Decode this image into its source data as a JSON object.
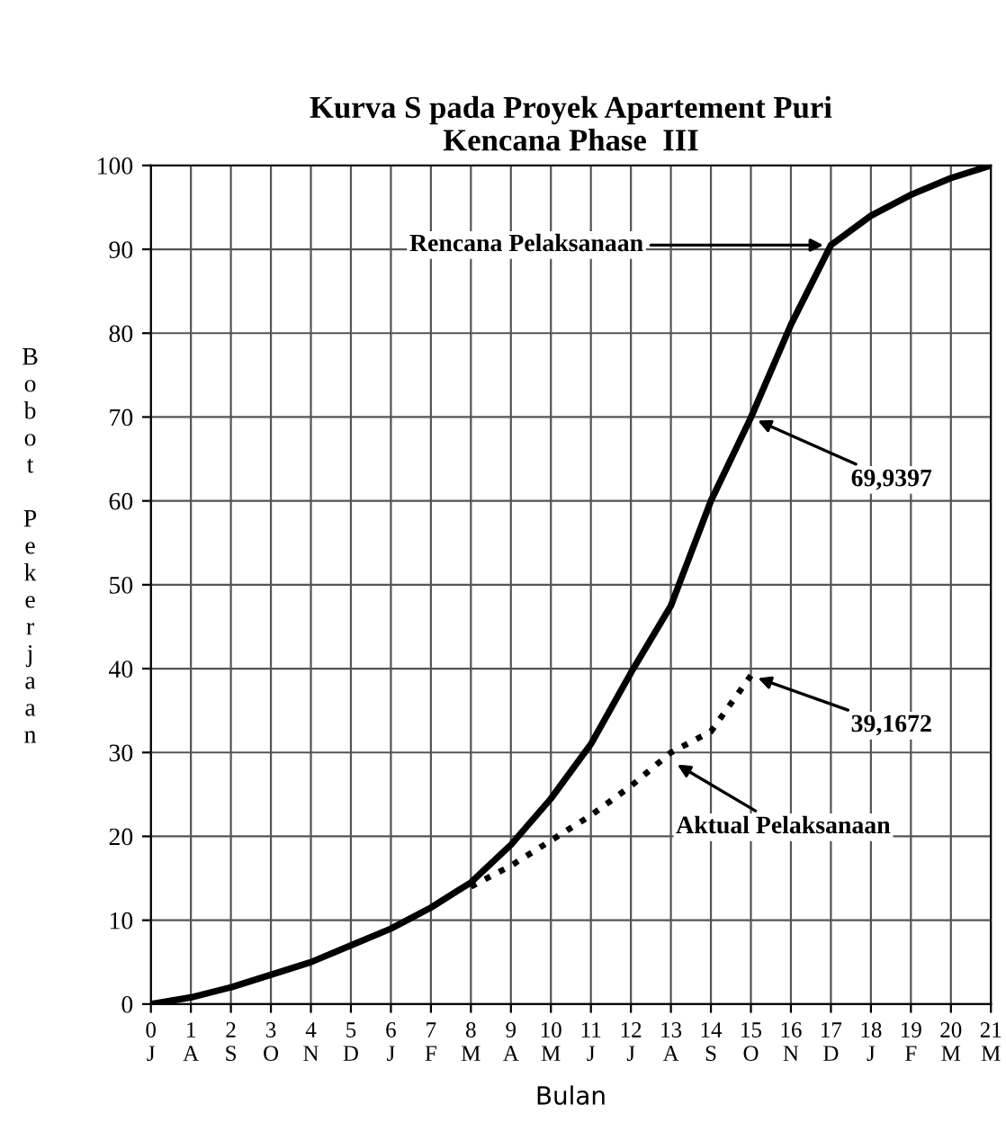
{
  "chart_data": {
    "type": "line",
    "title": "Kurva S pada Proyek Apartement Puri\nKencana Phase  III",
    "xlabel": "Bulan",
    "ylabel": "Bobot Pekerjaan",
    "series": [
      {
        "color": "#000000",
        "line_style": "solid",
        "x": [
          0,
          1,
          2,
          3,
          4,
          5,
          6,
          7,
          8,
          9,
          10,
          11,
          12,
          13,
          14,
          15,
          16,
          17,
          18,
          19,
          20,
          21
        ],
        "values": [
          0,
          0.8,
          2,
          3.5,
          5,
          7,
          9,
          11.5,
          14.5,
          19,
          24.5,
          31,
          39.5,
          47.5,
          60,
          69.9397,
          81,
          90.5,
          94,
          96.5,
          98.5,
          100
        ]
      },
      {
        "color": "#000000",
        "line_style": "dotted",
        "x": [
          8,
          9,
          10,
          11,
          12,
          13,
          14,
          15
        ],
        "values": [
          14,
          16.5,
          19.5,
          22.5,
          26,
          30,
          32.5,
          39.1672
        ]
      }
    ],
    "annotations": [
      {
        "text": "Rencana Pelaksanaan",
        "x": 17,
        "y": 90.5
      },
      {
        "text": "69,9397",
        "x": 15,
        "y": 69.9397
      },
      {
        "text": "39,1672",
        "x": 15,
        "y": 39.1672
      },
      {
        "text": "Aktual Pelaksanaan",
        "x": 13,
        "y": 29
      }
    ],
    "xlim": [
      0,
      21
    ],
    "ylim": [
      0,
      100
    ],
    "xticks": [
      {
        "value": 0,
        "label": "0\nJ"
      },
      {
        "value": 1,
        "label": "1\nA"
      },
      {
        "value": 2,
        "label": "2\nS"
      },
      {
        "value": 3,
        "label": "3\nO"
      },
      {
        "value": 4,
        "label": "4\nN"
      },
      {
        "value": 5,
        "label": "5\nD"
      },
      {
        "value": 6,
        "label": "6\nJ"
      },
      {
        "value": 7,
        "label": "7\nF"
      },
      {
        "value": 8,
        "label": "8\nM"
      },
      {
        "value": 9,
        "label": "9\nA"
      },
      {
        "value": 10,
        "label": "10\nM"
      },
      {
        "value": 11,
        "label": "11\nJ"
      },
      {
        "value": 12,
        "label": "12\nJ"
      },
      {
        "value": 13,
        "label": "13\nA"
      },
      {
        "value": 14,
        "label": "14\nS"
      },
      {
        "value": 15,
        "label": "15\nO"
      },
      {
        "value": 16,
        "label": "16\nN"
      },
      {
        "value": 17,
        "label": "17\nD"
      },
      {
        "value": 18,
        "label": "18\nJ"
      },
      {
        "value": 19,
        "label": "19\nF"
      },
      {
        "value": 20,
        "label": "20\nM"
      },
      {
        "value": 21,
        "label": "21\nM"
      }
    ],
    "yticks": [
      0,
      10,
      20,
      30,
      40,
      50,
      60,
      70,
      80,
      90,
      100
    ],
    "grid": true,
    "marker": "none"
  }
}
